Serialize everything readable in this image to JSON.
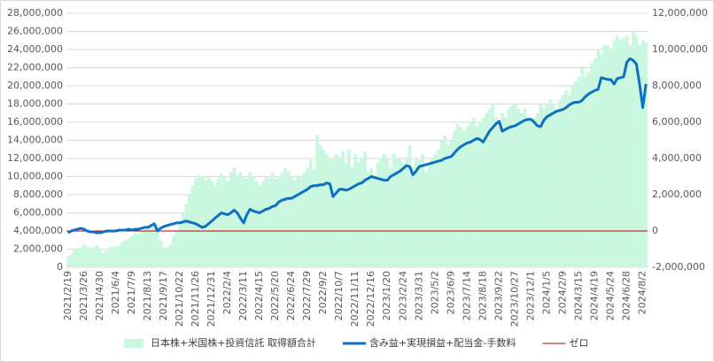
{
  "chart_data": {
    "type": "combo",
    "categories": [
      "2021/2/19",
      null,
      null,
      null,
      null,
      "2021/3/26",
      null,
      null,
      null,
      null,
      "2021/4/30",
      null,
      null,
      null,
      null,
      "2021/6/4",
      null,
      null,
      null,
      null,
      "2021/7/9",
      null,
      null,
      null,
      null,
      "2021/8/13",
      null,
      null,
      null,
      null,
      "2021/9/17",
      null,
      null,
      null,
      null,
      "2021/10/22",
      null,
      null,
      null,
      null,
      "2021/11/26",
      null,
      null,
      null,
      null,
      "2021/12/31",
      null,
      null,
      null,
      null,
      "2022/2/4",
      null,
      null,
      null,
      null,
      "2022/3/11",
      null,
      null,
      null,
      null,
      "2022/4/15",
      null,
      null,
      null,
      null,
      "2022/5/20",
      null,
      null,
      null,
      null,
      "2022/6/24",
      null,
      null,
      null,
      null,
      "2022/7/29",
      null,
      null,
      null,
      null,
      "2022/9/2",
      null,
      null,
      null,
      null,
      "2022/10/7",
      null,
      null,
      null,
      null,
      "2022/11/11",
      null,
      null,
      null,
      null,
      "2022/12/16",
      null,
      null,
      null,
      null,
      "2023/1/20",
      null,
      null,
      null,
      null,
      "2023/2/24",
      null,
      null,
      null,
      null,
      "2023/3/31",
      null,
      null,
      null,
      null,
      "2023/5/2",
      null,
      null,
      null,
      null,
      "2023/6/9",
      null,
      null,
      null,
      null,
      "2023/7/14",
      null,
      null,
      null,
      null,
      "2023/8/18",
      null,
      null,
      null,
      null,
      "2023/9/22",
      null,
      null,
      null,
      null,
      "2023/10/27",
      null,
      null,
      null,
      null,
      "2023/12/1",
      null,
      null,
      null,
      null,
      "2024/1/5",
      null,
      null,
      null,
      null,
      "2024/2/9",
      null,
      null,
      null,
      null,
      "2024/3/15",
      null,
      null,
      null,
      null,
      "2024/4/19",
      null,
      null,
      null,
      null,
      "2024/5/24",
      null,
      null,
      null,
      null,
      "2024/6/28",
      null,
      null,
      null,
      null,
      "2024/8/2",
      null
    ],
    "series": [
      {
        "name": "日本株+米国株+投資信託 取得額合計",
        "type": "bar",
        "color": "#c9f7df",
        "axis": "y",
        "values": [
          1200000,
          1500000,
          2000000,
          2100000,
          2200000,
          2500000,
          2300000,
          2000000,
          2200000,
          2400000,
          2000000,
          1500000,
          1800000,
          2200000,
          2300000,
          2300000,
          2400000,
          2800000,
          3000000,
          3200000,
          3500000,
          3800000,
          3600000,
          4000000,
          4200000,
          4300000,
          4500000,
          4600000,
          4800000,
          3000000,
          2200000,
          2200000,
          2500000,
          3500000,
          4000000,
          5000000,
          6000000,
          7000000,
          8000000,
          9000000,
          9800000,
          10200000,
          10000000,
          9600000,
          10000000,
          9600000,
          9000000,
          9800000,
          10300000,
          10000000,
          9500000,
          10500000,
          11000000,
          10200000,
          10500000,
          10000000,
          9800000,
          10500000,
          10000000,
          9500000,
          9000000,
          9500000,
          10000000,
          9800000,
          10500000,
          9800000,
          10000000,
          10500000,
          11000000,
          10600000,
          10000000,
          9600000,
          10200000,
          9900000,
          10500000,
          11000000,
          12000000,
          10800000,
          14600000,
          13500000,
          13000000,
          12500000,
          12000000,
          11800000,
          12500000,
          12000000,
          12800000,
          11500000,
          13000000,
          11000000,
          12500000,
          11500000,
          12000000,
          12800000,
          10500000,
          11000000,
          10000000,
          11500000,
          12000000,
          12500000,
          12000000,
          11000000,
          12500000,
          12000000,
          12000000,
          11500000,
          12000000,
          13500000,
          11000000,
          12000000,
          11800000,
          12500000,
          10500000,
          11500000,
          12000000,
          12500000,
          13000000,
          14000000,
          14500000,
          13500000,
          14000000,
          15000000,
          15800000,
          15500000,
          15000000,
          15500000,
          16000000,
          16500000,
          15500000,
          16000000,
          16500000,
          17000000,
          17500000,
          18000000,
          16500000,
          16000000,
          17000000,
          16500000,
          17500000,
          17800000,
          18000000,
          17500000,
          17000000,
          17500000,
          16500000,
          16000000,
          16500000,
          17000000,
          18000000,
          17500000,
          18000000,
          18500000,
          18000000,
          17500000,
          18500000,
          19000000,
          19500000,
          19000000,
          20000000,
          20500000,
          21000000,
          22000000,
          21000000,
          21500000,
          22500000,
          23000000,
          24000000,
          23500000,
          24500000,
          24500000,
          24000000,
          25000000,
          25500000,
          25000000,
          25300000,
          25500000,
          24500000,
          26000000,
          25500000,
          24500000,
          25000000,
          24800000
        ]
      },
      {
        "name": "含み益+実現損益+配当金-手数料",
        "type": "line",
        "color": "#0f6fc0",
        "axis": "y2",
        "values": [
          -100000,
          0,
          50000,
          100000,
          150000,
          100000,
          0,
          -50000,
          -50000,
          -100000,
          -100000,
          -50000,
          0,
          0,
          0,
          0,
          50000,
          50000,
          50000,
          100000,
          50000,
          100000,
          100000,
          150000,
          200000,
          200000,
          300000,
          400000,
          0,
          150000,
          250000,
          300000,
          350000,
          400000,
          450000,
          450000,
          500000,
          550000,
          500000,
          450000,
          400000,
          300000,
          200000,
          250000,
          400000,
          550000,
          700000,
          850000,
          1000000,
          950000,
          900000,
          1000000,
          1150000,
          1000000,
          700000,
          450000,
          900000,
          1200000,
          1100000,
          1050000,
          1000000,
          1100000,
          1200000,
          1250000,
          1350000,
          1400000,
          1600000,
          1700000,
          1750000,
          1800000,
          1800000,
          1900000,
          2000000,
          2100000,
          2200000,
          2300000,
          2450000,
          2500000,
          2500000,
          2550000,
          2550000,
          2650000,
          2600000,
          1900000,
          2100000,
          2300000,
          2300000,
          2250000,
          2300000,
          2400000,
          2500000,
          2600000,
          2650000,
          2800000,
          2900000,
          3000000,
          2950000,
          2900000,
          2850000,
          2800000,
          2800000,
          3000000,
          3100000,
          3200000,
          3300000,
          3450000,
          3600000,
          3550000,
          3100000,
          3300000,
          3550000,
          3600000,
          3650000,
          3700000,
          3750000,
          3800000,
          3850000,
          3900000,
          4000000,
          4050000,
          4100000,
          4300000,
          4500000,
          4650000,
          4750000,
          4850000,
          4900000,
          5000000,
          5100000,
          5050000,
          4900000,
          5200000,
          5500000,
          5700000,
          5900000,
          6050000,
          5500000,
          5600000,
          5700000,
          5750000,
          5800000,
          5900000,
          6000000,
          6100000,
          6150000,
          6150000,
          6000000,
          5800000,
          5750000,
          6100000,
          6300000,
          6400000,
          6500000,
          6600000,
          6650000,
          6700000,
          6800000,
          6950000,
          7050000,
          7100000,
          7100000,
          7200000,
          7400000,
          7550000,
          7650000,
          7750000,
          7800000,
          8450000,
          8400000,
          8350000,
          8350000,
          8100000,
          8400000,
          8450000,
          8500000,
          9300000,
          9500000,
          9400000,
          9200000,
          8100000,
          6800000,
          8100000
        ]
      }
    ],
    "reference_line": {
      "name": "ゼロ",
      "color": "#c00000",
      "value": 0,
      "axis": "y2"
    },
    "ylim": [
      0,
      28000000
    ],
    "yticks": [
      0,
      {
        "value": 2000000,
        "label": "2,000,000"
      },
      {
        "value": 4000000,
        "label": "4,000,000"
      },
      {
        "value": 6000000,
        "label": "6,000,000"
      },
      {
        "value": 8000000,
        "label": "8,000,000"
      },
      {
        "value": 10000000,
        "label": "10,000,000"
      },
      {
        "value": 12000000,
        "label": "12,000,000"
      },
      {
        "value": 14000000,
        "label": "14,000,000"
      },
      {
        "value": 16000000,
        "label": "16,000,000"
      },
      {
        "value": 18000000,
        "label": "18,000,000"
      },
      {
        "value": 20000000,
        "label": "20,000,000"
      },
      {
        "value": 22000000,
        "label": "22,000,000"
      },
      {
        "value": 24000000,
        "label": "24,000,000"
      },
      {
        "value": 26000000,
        "label": "26,000,000"
      },
      {
        "value": 28000000,
        "label": "28,000,000"
      }
    ],
    "y2lim": [
      -2000000,
      12000000
    ],
    "y2ticks": [
      {
        "value": -2000000,
        "label": "-2,000,000"
      },
      0,
      {
        "value": 2000000,
        "label": "2,000,000"
      },
      {
        "value": 4000000,
        "label": "4,000,000"
      },
      {
        "value": 6000000,
        "label": "6,000,000"
      },
      {
        "value": 8000000,
        "label": "8,000,000"
      },
      {
        "value": 10000000,
        "label": "10,000,000"
      },
      {
        "value": 12000000,
        "label": "12,000,000"
      }
    ],
    "grid": true
  }
}
